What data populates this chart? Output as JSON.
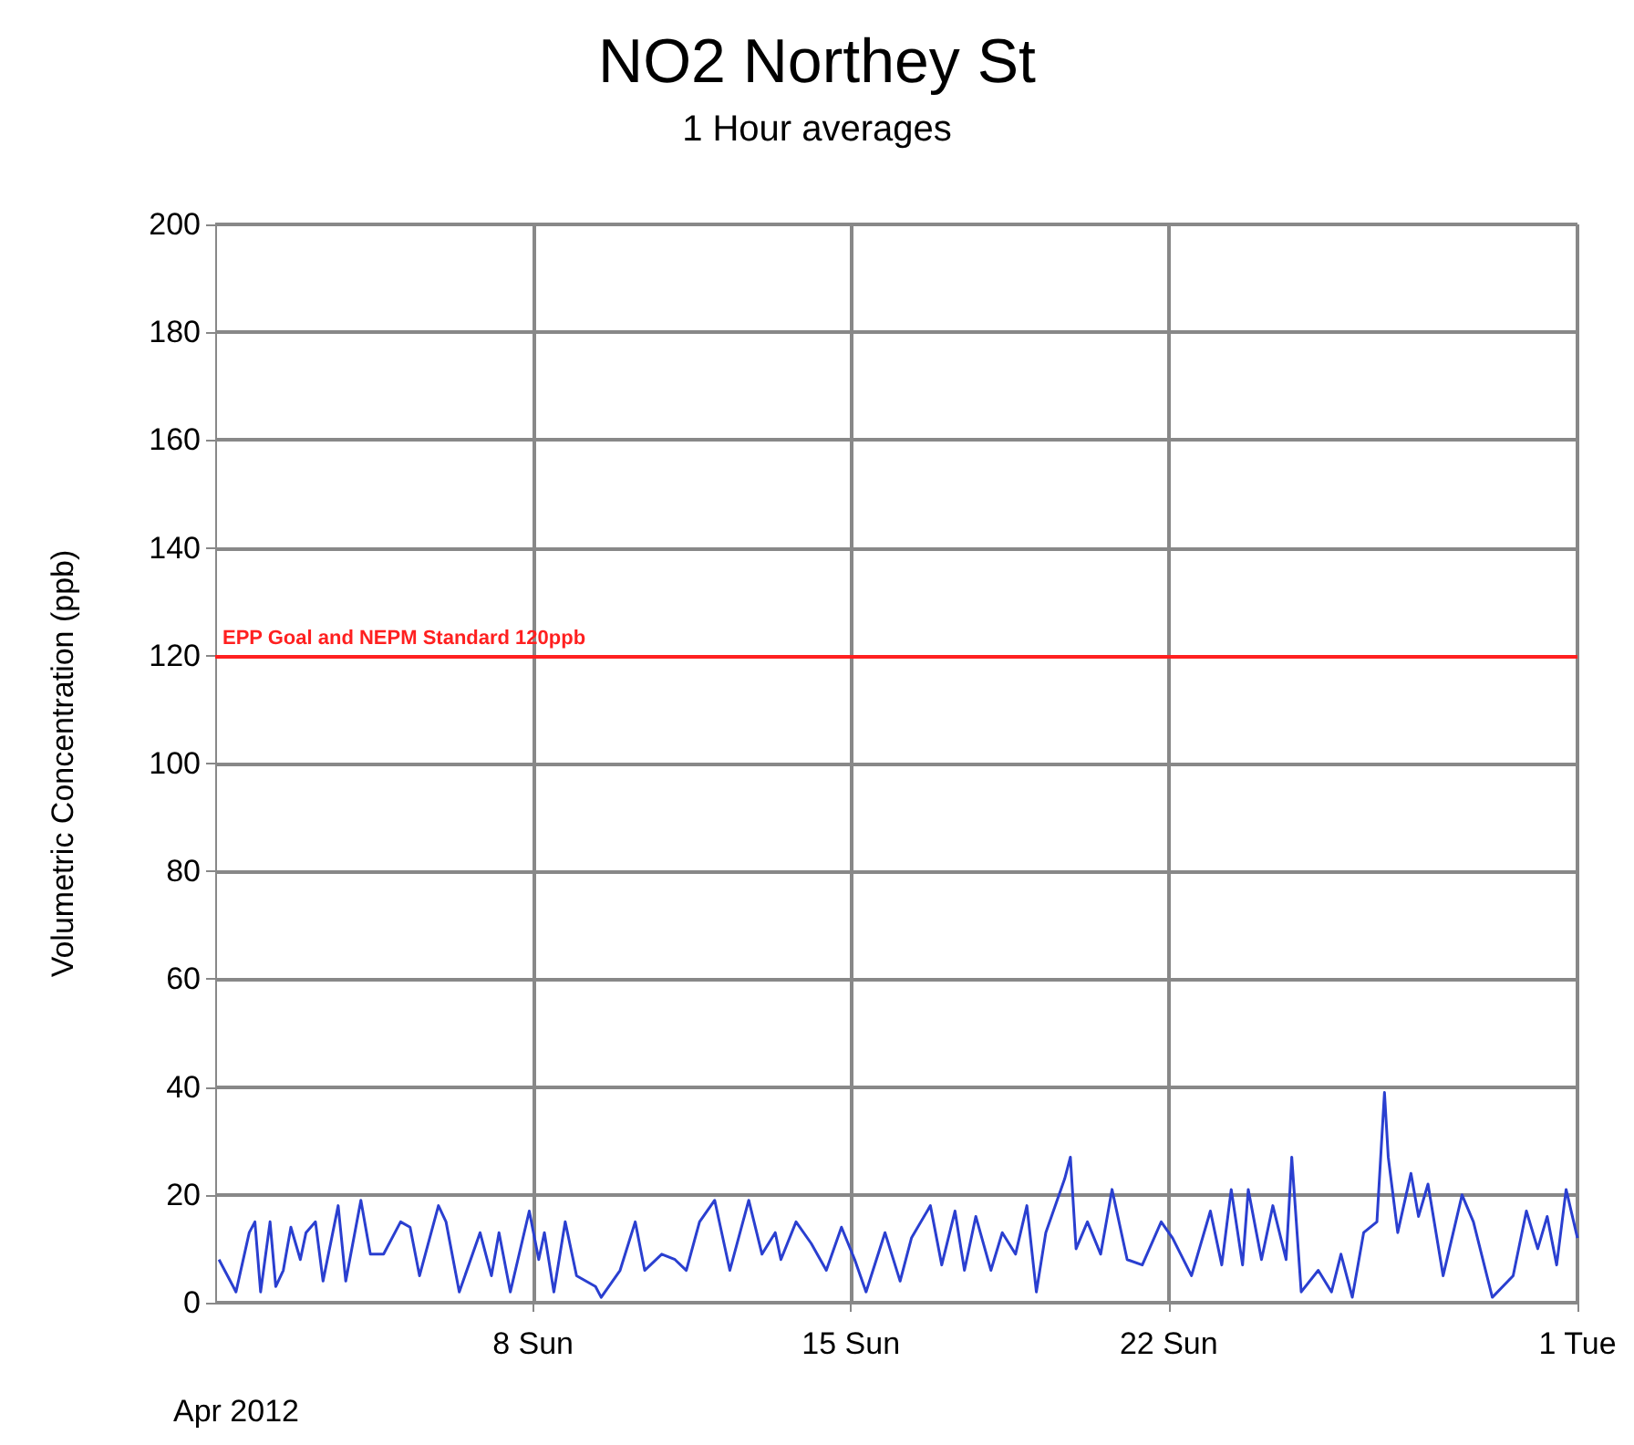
{
  "chart_data": {
    "type": "line",
    "title": "NO2 Northey St",
    "subtitle": "1 Hour averages",
    "ylabel": "Volumetric Concentration (ppb)",
    "annotations": [
      "Apr 2012"
    ],
    "xlim": [
      "2012-04-01",
      "2012-05-01"
    ],
    "xticks": [
      {
        "value": "2012-04-08",
        "label": "8 Sun"
      },
      {
        "value": "2012-04-15",
        "label": "15 Sun"
      },
      {
        "value": "2012-04-22",
        "label": "22 Sun"
      },
      {
        "value": "2012-05-01",
        "label": "1 Tue"
      }
    ],
    "ylim": [
      0,
      200
    ],
    "yticks": [
      0,
      20,
      40,
      60,
      80,
      100,
      120,
      140,
      160,
      180,
      200
    ],
    "grid": true,
    "marker": "none",
    "ref_lines": [
      {
        "axis": "y",
        "value": 120,
        "label": "EPP Goal and NEPM Standard 120ppb",
        "color": "#ff2020"
      }
    ],
    "series": [
      {
        "color": "#2a3fd0",
        "x": [
          "2012-04-01T02:00",
          "2012-04-01T11:00",
          "2012-04-01T18:00",
          "2012-04-01T21:00",
          "2012-04-02T00:00",
          "2012-04-02T05:00",
          "2012-04-02T08:00",
          "2012-04-02T12:00",
          "2012-04-02T16:00",
          "2012-04-02T21:00",
          "2012-04-03T00:00",
          "2012-04-03T05:00",
          "2012-04-03T09:00",
          "2012-04-03T17:00",
          "2012-04-03T21:00",
          "2012-04-04T05:00",
          "2012-04-04T10:00",
          "2012-04-04T17:00",
          "2012-04-05T02:00",
          "2012-04-05T07:00",
          "2012-04-05T12:00",
          "2012-04-05T22:00",
          "2012-04-06T02:00",
          "2012-04-06T09:00",
          "2012-04-06T20:00",
          "2012-04-07T02:00",
          "2012-04-07T06:00",
          "2012-04-07T12:00",
          "2012-04-07T22:00",
          "2012-04-08T03:00",
          "2012-04-08T06:00",
          "2012-04-08T11:00",
          "2012-04-08T17:00",
          "2012-04-08T23:00",
          "2012-04-09T09:00",
          "2012-04-09T12:00",
          "2012-04-09T22:00",
          "2012-04-10T06:00",
          "2012-04-10T11:00",
          "2012-04-10T20:00",
          "2012-04-11T03:00",
          "2012-04-11T09:00",
          "2012-04-11T16:00",
          "2012-04-12T00:00",
          "2012-04-12T08:00",
          "2012-04-12T18:00",
          "2012-04-13T01:00",
          "2012-04-13T08:00",
          "2012-04-13T11:00",
          "2012-04-13T19:00",
          "2012-04-14T03:00",
          "2012-04-14T11:00",
          "2012-04-14T19:00",
          "2012-04-15T02:00",
          "2012-04-15T08:00",
          "2012-04-15T18:00",
          "2012-04-16T02:00",
          "2012-04-16T08:00",
          "2012-04-16T18:00",
          "2012-04-17T00:00",
          "2012-04-17T07:00",
          "2012-04-17T12:00",
          "2012-04-17T18:00",
          "2012-04-18T02:00",
          "2012-04-18T08:00",
          "2012-04-18T15:00",
          "2012-04-18T21:00",
          "2012-04-19T02:00",
          "2012-04-19T07:00",
          "2012-04-19T17:00",
          "2012-04-19T20:00",
          "2012-04-19T23:00",
          "2012-04-20T05:00",
          "2012-04-20T12:00",
          "2012-04-20T18:00",
          "2012-04-21T02:00",
          "2012-04-21T10:00",
          "2012-04-21T20:00",
          "2012-04-22T02:00",
          "2012-04-22T12:00",
          "2012-04-22T22:00",
          "2012-04-23T04:00",
          "2012-04-23T09:00",
          "2012-04-23T15:00",
          "2012-04-23T18:00",
          "2012-04-24T01:00",
          "2012-04-24T07:00",
          "2012-04-24T14:00",
          "2012-04-24T17:00",
          "2012-04-24T22:00",
          "2012-04-25T07:00",
          "2012-04-25T14:00",
          "2012-04-25T19:00",
          "2012-04-26T01:00",
          "2012-04-26T07:00",
          "2012-04-26T14:00",
          "2012-04-26T18:00",
          "2012-04-26T20:00",
          "2012-04-27T01:00",
          "2012-04-27T08:00",
          "2012-04-27T12:00",
          "2012-04-27T17:00",
          "2012-04-28T01:00",
          "2012-04-28T11:00",
          "2012-04-28T17:00",
          "2012-04-29T03:00",
          "2012-04-29T14:00",
          "2012-04-29T21:00",
          "2012-04-30T03:00",
          "2012-04-30T08:00",
          "2012-04-30T13:00",
          "2012-04-30T18:00",
          "2012-05-01T00:00"
        ],
        "values": [
          8,
          2,
          13,
          15,
          2,
          15,
          3,
          6,
          14,
          8,
          13,
          15,
          4,
          18,
          4,
          19,
          9,
          9,
          15,
          14,
          5,
          18,
          15,
          2,
          13,
          5,
          13,
          2,
          17,
          8,
          13,
          2,
          15,
          5,
          3,
          1,
          6,
          15,
          6,
          9,
          8,
          6,
          15,
          19,
          6,
          19,
          9,
          13,
          8,
          15,
          11,
          6,
          14,
          8,
          2,
          13,
          4,
          12,
          18,
          7,
          17,
          6,
          16,
          6,
          13,
          9,
          18,
          2,
          13,
          23,
          27,
          10,
          15,
          9,
          21,
          8,
          7,
          15,
          12,
          5,
          17,
          7,
          21,
          7,
          21,
          8,
          18,
          8,
          27,
          2,
          6,
          2,
          9,
          1,
          13,
          15,
          39,
          27,
          13,
          24,
          16,
          22,
          5,
          20,
          15,
          1,
          5,
          17,
          10,
          16,
          7,
          21,
          12
        ]
      }
    ]
  }
}
